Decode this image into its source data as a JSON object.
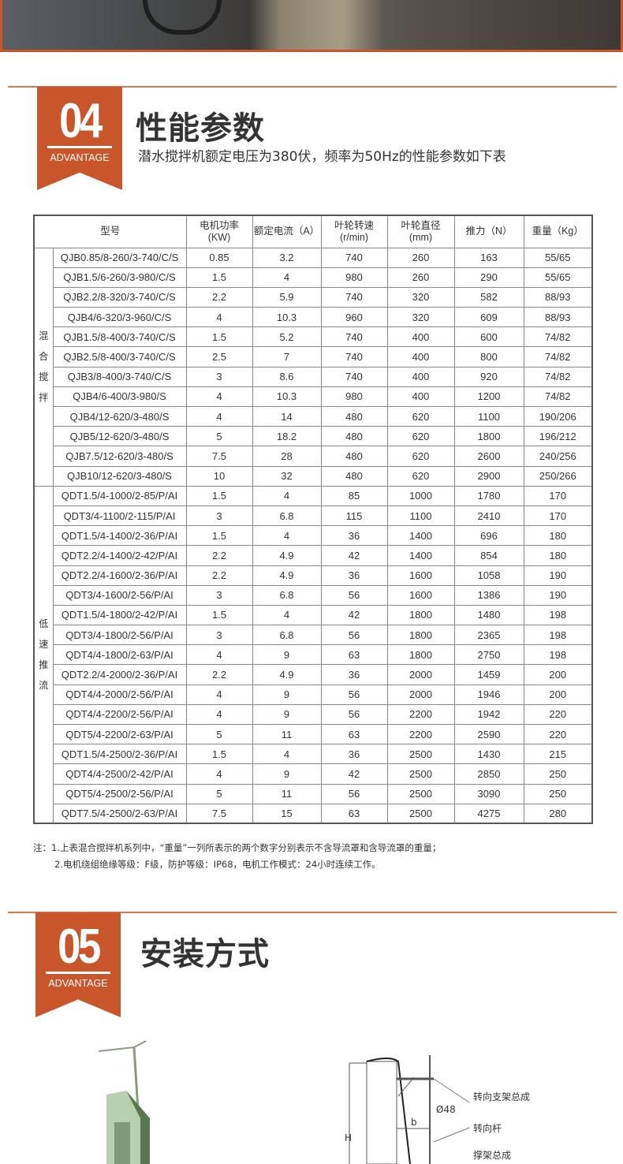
{
  "colors": {
    "accent": "#c8562a",
    "text": "#333333"
  },
  "section4": {
    "number": "04",
    "tag": "ADVANTAGE",
    "title": "性能参数",
    "subtitle": "潜水搅拌机额定电压为380伏，频率为50Hz的性能参数如下表"
  },
  "table": {
    "headers": [
      "型号",
      "电机功率\n(KW)",
      "额定电流（A）",
      "叶轮转速\n(r/min)",
      "叶轮直径\n(mm)",
      "推力（N）",
      "重量（Kg）"
    ],
    "groups": [
      {
        "label": "混合搅拌",
        "rows": [
          [
            "QJB0.85/8-260/3-740/C/S",
            "0.85",
            "3.2",
            "740",
            "260",
            "163",
            "55/65"
          ],
          [
            "QJB1.5/6-260/3-980/C/S",
            "1.5",
            "4",
            "980",
            "260",
            "290",
            "55/65"
          ],
          [
            "QJB2.2/8-320/3-740/C/S",
            "2.2",
            "5.9",
            "740",
            "320",
            "582",
            "88/93"
          ],
          [
            "QJB4/6-320/3-960/C/S",
            "4",
            "10.3",
            "960",
            "320",
            "609",
            "88/93"
          ],
          [
            "QJB1.5/8-400/3-740/C/S",
            "1.5",
            "5.2",
            "740",
            "400",
            "600",
            "74/82"
          ],
          [
            "QJB2.5/8-400/3-740/C/S",
            "2.5",
            "7",
            "740",
            "400",
            "800",
            "74/82"
          ],
          [
            "QJB3/8-400/3-740/C/S",
            "3",
            "8.6",
            "740",
            "400",
            "920",
            "74/82"
          ],
          [
            "QJB4/6-400/3-980/S",
            "4",
            "10.3",
            "980",
            "400",
            "1200",
            "74/82"
          ],
          [
            "QJB4/12-620/3-480/S",
            "4",
            "14",
            "480",
            "620",
            "1100",
            "190/206"
          ],
          [
            "QJB5/12-620/3-480/S",
            "5",
            "18.2",
            "480",
            "620",
            "1800",
            "196/212"
          ],
          [
            "QJB7.5/12-620/3-480/S",
            "7.5",
            "28",
            "480",
            "620",
            "2600",
            "240/256"
          ],
          [
            "QJB10/12-620/3-480/S",
            "10",
            "32",
            "480",
            "620",
            "2900",
            "250/266"
          ]
        ]
      },
      {
        "label": "低速推流",
        "rows": [
          [
            "QDT1.5/4-1000/2-85/P/AI",
            "1.5",
            "4",
            "85",
            "1000",
            "1780",
            "170"
          ],
          [
            "QDT3/4-1100/2-115/P/AI",
            "3",
            "6.8",
            "115",
            "1100",
            "2410",
            "170"
          ],
          [
            "QDT1.5/4-1400/2-36/P/AI",
            "1.5",
            "4",
            "36",
            "1400",
            "696",
            "180"
          ],
          [
            "QDT2.2/4-1400/2-42/P/AI",
            "2.2",
            "4.9",
            "42",
            "1400",
            "854",
            "180"
          ],
          [
            "QDT2.2/4-1600/2-36/P/AI",
            "2.2",
            "4.9",
            "36",
            "1600",
            "1058",
            "190"
          ],
          [
            "QDT3/4-1600/2-56/P/AI",
            "3",
            "6.8",
            "56",
            "1600",
            "1386",
            "190"
          ],
          [
            "QDT1.5/4-1800/2-42/P/AI",
            "1.5",
            "4",
            "42",
            "1800",
            "1480",
            "198"
          ],
          [
            "QDT3/4-1800/2-56/P/AI",
            "3",
            "6.8",
            "56",
            "1800",
            "2365",
            "198"
          ],
          [
            "QDT4/4-1800/2-63/P/AI",
            "4",
            "9",
            "63",
            "1800",
            "2750",
            "198"
          ],
          [
            "QDT2.2/4-2000/2-36/P/AI",
            "2.2",
            "4.9",
            "36",
            "2000",
            "1459",
            "200"
          ],
          [
            "QDT4/4-2000/2-56/P/AI",
            "4",
            "9",
            "56",
            "2000",
            "1946",
            "200"
          ],
          [
            "QDT4/4-2200/2-56/P/AI",
            "4",
            "9",
            "56",
            "2200",
            "1942",
            "220"
          ],
          [
            "QDT5/4-2200/2-63/P/AI",
            "5",
            "11",
            "63",
            "2200",
            "2590",
            "220"
          ],
          [
            "QDT1.5/4-2500/2-36/P/AI",
            "1.5",
            "4",
            "36",
            "2500",
            "1430",
            "215"
          ],
          [
            "QDT4/4-2500/2-42/P/AI",
            "4",
            "9",
            "42",
            "2500",
            "2850",
            "250"
          ],
          [
            "QDT5/4-2500/2-56/P/AI",
            "5",
            "11",
            "56",
            "2500",
            "3090",
            "250"
          ],
          [
            "QDT7.5/4-2500/2-63/P/AI",
            "7.5",
            "15",
            "63",
            "2500",
            "4275",
            "280"
          ]
        ]
      }
    ]
  },
  "notes": [
    "注：1.上表混合搅拌机系列中，“重量”一列所表示的两个数字分别表示不含导流罩和含导流罩的重量；",
    "2.电机绕组绝缘等级：F级，防护等级：IP68，电机工作模式：24小时连续工作。"
  ],
  "section5": {
    "number": "05",
    "tag": "ADVANTAGE",
    "title": "安装方式",
    "diagram_labels": {
      "bracket": "转向支架总成",
      "diameter": "Ø48",
      "rod": "转向杆",
      "b": "b",
      "support": "撑架总成",
      "h": "H"
    }
  }
}
